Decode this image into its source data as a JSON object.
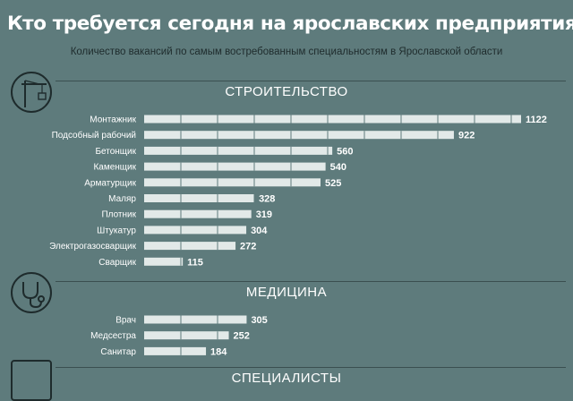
{
  "header": {
    "title": "Кто требуется сегодня на ярославских предприятиях",
    "subtitle": "Количество вакансий по самым востребованным специальностям в Ярославской области"
  },
  "sections": [
    {
      "title": "СТРОИТЕЛЬСТВО",
      "icon": "crane-icon"
    },
    {
      "title": "МЕДИЦИНА",
      "icon": "stethoscope-icon"
    },
    {
      "title": "СПЕЦИАЛИСТЫ",
      "icon": "monitor-icon"
    }
  ],
  "colors": {
    "background": "#5e7b7c",
    "bar": "#e2e9e8",
    "text": "#ffffff",
    "dark": "#1e2b2c"
  },
  "chart_data": [
    {
      "type": "bar",
      "orientation": "horizontal",
      "title": "СТРОИТЕЛЬСТВО",
      "categories": [
        "Монтажник",
        "Подсобный рабочий",
        "Бетонщик",
        "Каменщик",
        "Арматурщик",
        "Маляр",
        "Плотник",
        "Штукатур",
        "Электрогазосварщик",
        "Сварщик"
      ],
      "values": [
        1122,
        922,
        560,
        540,
        525,
        328,
        319,
        304,
        272,
        115
      ]
    },
    {
      "type": "bar",
      "orientation": "horizontal",
      "title": "МЕДИЦИНА",
      "categories": [
        "Врач",
        "Медсестра",
        "Санитар"
      ],
      "values": [
        305,
        252,
        184
      ]
    },
    {
      "type": "bar",
      "orientation": "horizontal",
      "title": "СПЕЦИАЛИСТЫ",
      "categories": [],
      "values": []
    }
  ]
}
